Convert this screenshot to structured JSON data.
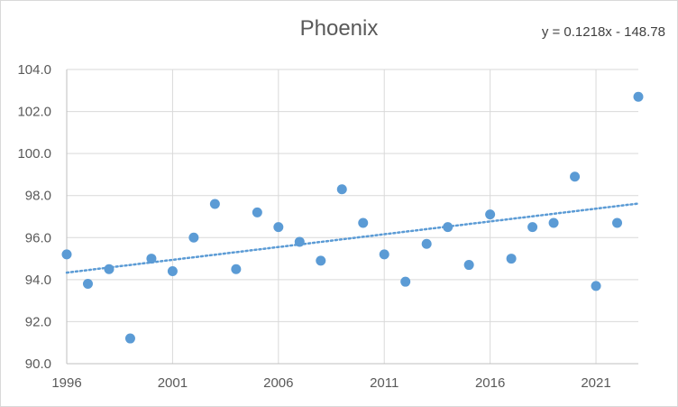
{
  "chart_data": {
    "type": "scatter",
    "title": "Phoenix",
    "xlabel": "",
    "ylabel": "",
    "xlim": [
      1996,
      2023
    ],
    "ylim": [
      90,
      104
    ],
    "x_ticks": [
      1996,
      2001,
      2006,
      2011,
      2016,
      2021
    ],
    "y_ticks": [
      90,
      92,
      94,
      96,
      98,
      100,
      102,
      104
    ],
    "y_tick_labels": [
      "90.0",
      "92.0",
      "94.0",
      "96.0",
      "98.0",
      "100.0",
      "102.0",
      "104.0"
    ],
    "x_tick_labels": [
      "1996",
      "2001",
      "2006",
      "2011",
      "2016",
      "2021"
    ],
    "grid": "vertical and horizontal major gridlines",
    "series": [
      {
        "color": "#5b9bd5",
        "x": [
          1996,
          1997,
          1998,
          1999,
          2000,
          2001,
          2002,
          2003,
          2004,
          2005,
          2006,
          2007,
          2008,
          2009,
          2010,
          2011,
          2012,
          2013,
          2014,
          2015,
          2016,
          2017,
          2018,
          2019,
          2020,
          2021,
          2022,
          2023
        ],
        "values": [
          95.2,
          93.8,
          94.5,
          91.2,
          95.0,
          94.4,
          96.0,
          97.6,
          94.5,
          97.2,
          96.5,
          95.8,
          94.9,
          98.3,
          96.7,
          95.2,
          93.9,
          95.7,
          96.5,
          94.7,
          97.1,
          95.0,
          96.5,
          96.7,
          98.9,
          93.7,
          96.7,
          102.7
        ]
      }
    ],
    "trendline": {
      "style": "dotted linear",
      "color": "#5b9bd5",
      "slope": 0.1218,
      "intercept": -148.78,
      "equation_label": "y = 0.1218x - 148.78"
    }
  }
}
